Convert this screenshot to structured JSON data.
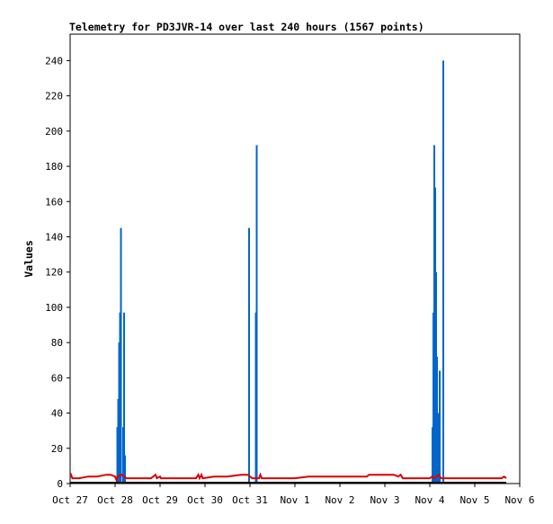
{
  "chart_data": {
    "type": "line",
    "title": "Telemetry for PD3JVR-14 over last 240 hours (1567 points)",
    "xlabel": "",
    "ylabel": "Values",
    "x_range_days": [
      0,
      10
    ],
    "ylim": [
      0,
      255
    ],
    "x_ticks": [
      {
        "label": "Oct 27",
        "day": 0
      },
      {
        "label": "Oct 28",
        "day": 1
      },
      {
        "label": "Oct 29",
        "day": 2
      },
      {
        "label": "Oct 30",
        "day": 3
      },
      {
        "label": "Oct 31",
        "day": 4
      },
      {
        "label": "Nov 1",
        "day": 5
      },
      {
        "label": "Nov 2",
        "day": 6
      },
      {
        "label": "Nov 3",
        "day": 7
      },
      {
        "label": "Nov 4",
        "day": 8
      },
      {
        "label": "Nov 5",
        "day": 9
      },
      {
        "label": "Nov 6",
        "day": 10
      }
    ],
    "y_ticks": [
      0,
      20,
      40,
      60,
      80,
      100,
      120,
      140,
      160,
      180,
      200,
      220,
      240
    ],
    "grid": false,
    "legend": "none",
    "series": [
      {
        "color": "#0066cc",
        "style": "spikes",
        "points": [
          [
            1.05,
            32
          ],
          [
            1.07,
            48
          ],
          [
            1.09,
            80
          ],
          [
            1.11,
            97
          ],
          [
            1.13,
            145
          ],
          [
            1.18,
            32
          ],
          [
            1.2,
            97
          ],
          [
            1.22,
            16
          ],
          [
            3.98,
            145
          ],
          [
            4.13,
            97
          ],
          [
            4.15,
            192
          ],
          [
            8.06,
            32
          ],
          [
            8.08,
            97
          ],
          [
            8.1,
            192
          ],
          [
            8.12,
            168
          ],
          [
            8.14,
            120
          ],
          [
            8.16,
            72
          ],
          [
            8.18,
            40
          ],
          [
            8.22,
            64
          ],
          [
            8.3,
            240
          ]
        ]
      },
      {
        "color": "#dd0000",
        "style": "line",
        "points": [
          [
            0,
            4
          ],
          [
            0.02,
            5
          ],
          [
            0.05,
            3
          ],
          [
            0.2,
            3
          ],
          [
            0.4,
            4
          ],
          [
            0.6,
            4
          ],
          [
            0.8,
            5
          ],
          [
            0.9,
            5
          ],
          [
            1.0,
            4
          ],
          [
            1.03,
            2
          ],
          [
            1.05,
            4
          ],
          [
            1.15,
            5
          ],
          [
            1.25,
            3
          ],
          [
            1.3,
            3
          ],
          [
            1.6,
            3
          ],
          [
            1.8,
            3
          ],
          [
            1.9,
            5
          ],
          [
            1.93,
            3
          ],
          [
            2.0,
            4
          ],
          [
            2.02,
            3
          ],
          [
            2.5,
            3
          ],
          [
            2.8,
            3
          ],
          [
            2.85,
            5
          ],
          [
            2.88,
            3
          ],
          [
            2.92,
            5
          ],
          [
            2.95,
            3
          ],
          [
            3.2,
            4
          ],
          [
            3.5,
            4
          ],
          [
            3.8,
            5
          ],
          [
            3.95,
            5
          ],
          [
            4.0,
            4
          ],
          [
            4.05,
            3
          ],
          [
            4.2,
            3
          ],
          [
            4.23,
            5
          ],
          [
            4.26,
            3
          ],
          [
            5.0,
            3
          ],
          [
            5.3,
            4
          ],
          [
            6.0,
            4
          ],
          [
            6.6,
            4
          ],
          [
            6.65,
            5
          ],
          [
            7.2,
            5
          ],
          [
            7.3,
            4
          ],
          [
            7.35,
            5
          ],
          [
            7.4,
            3
          ],
          [
            8.0,
            3
          ],
          [
            8.05,
            4
          ],
          [
            8.1,
            3
          ],
          [
            8.2,
            5
          ],
          [
            8.25,
            3
          ],
          [
            8.8,
            3
          ],
          [
            9.2,
            3
          ],
          [
            9.6,
            3
          ],
          [
            9.65,
            4
          ],
          [
            9.7,
            3
          ]
        ]
      },
      {
        "color": "#000000",
        "style": "line",
        "points": [
          [
            0,
            0.5
          ],
          [
            9.7,
            0.5
          ]
        ]
      }
    ]
  }
}
